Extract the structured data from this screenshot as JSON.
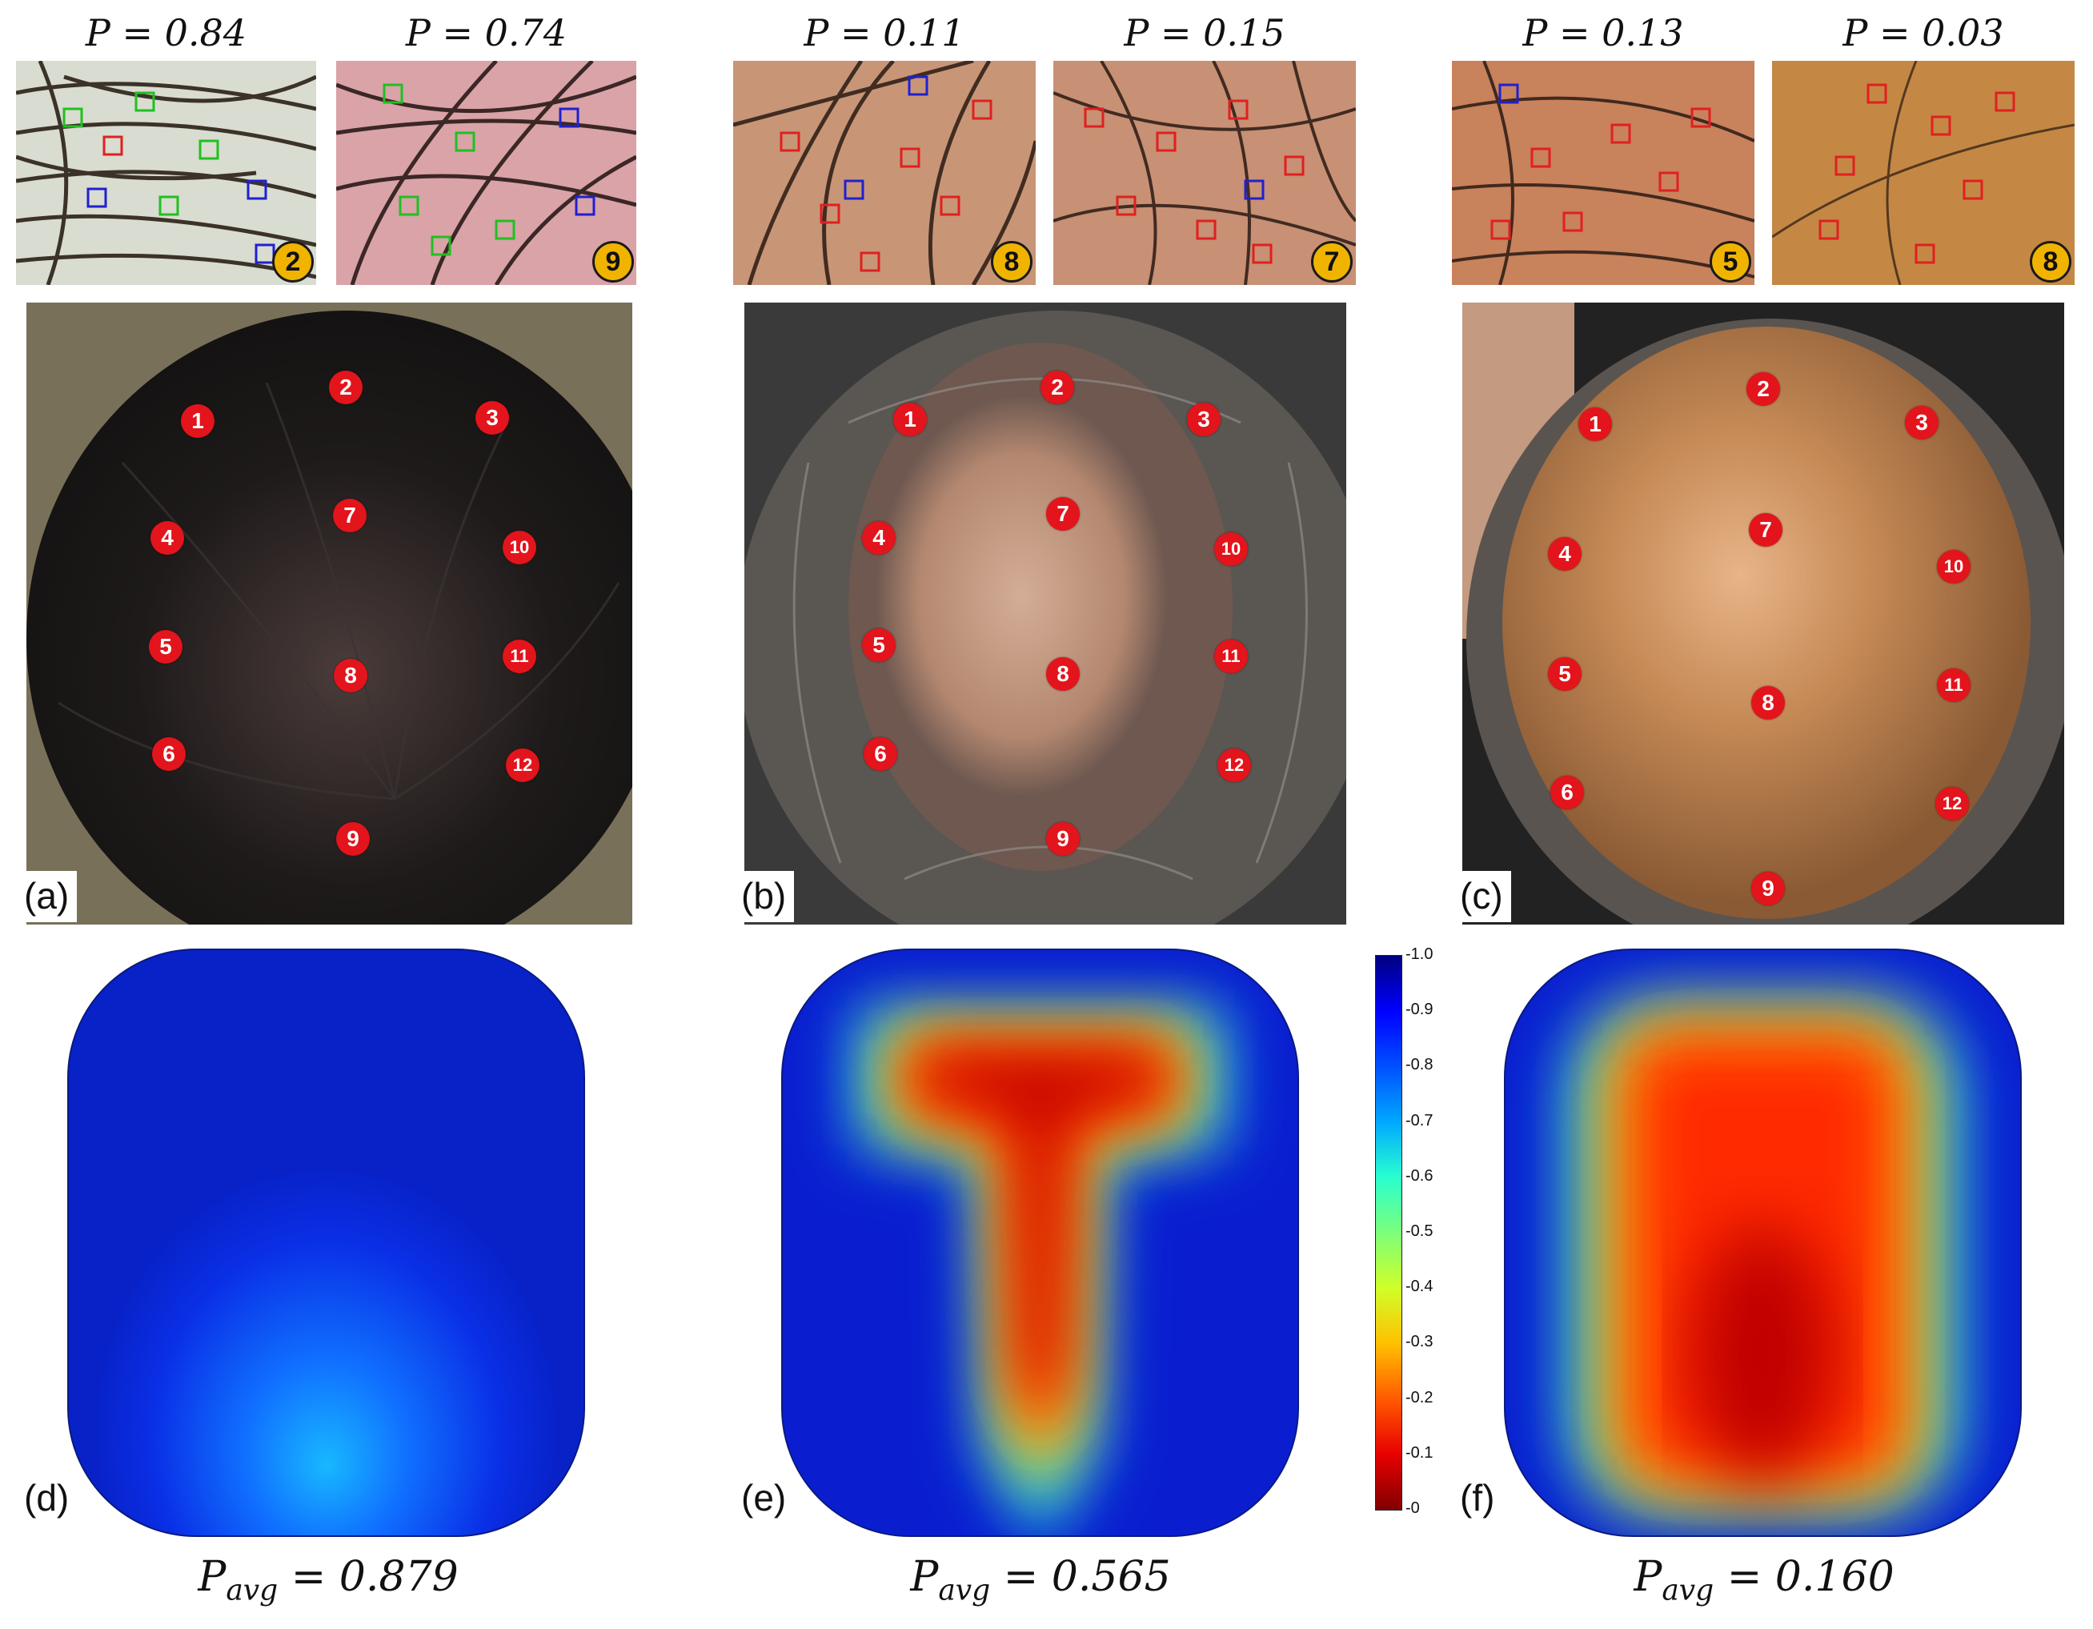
{
  "panels": [
    {
      "label": "(a)",
      "micro_images": [
        {
          "p_label": "P = 0.84",
          "badge": "2",
          "box_color": "green"
        },
        {
          "p_label": "P = 0.74",
          "badge": "9",
          "box_color": "green"
        }
      ],
      "scalp_photo": {
        "description_icon": "scalp-photo-dense-hair",
        "point_labels": [
          "1",
          "2",
          "3",
          "4",
          "5",
          "6",
          "7",
          "8",
          "9",
          "10",
          "11",
          "12"
        ]
      },
      "heatmap": {
        "label": "(d)",
        "avg_prefix": "P",
        "avg_subscript": "avg",
        "avg_value": "= 0.879"
      }
    },
    {
      "label": "(b)",
      "micro_images": [
        {
          "p_label": "P = 0.11",
          "badge": "8",
          "box_color": "red"
        },
        {
          "p_label": "P = 0.15",
          "badge": "7",
          "box_color": "red"
        }
      ],
      "scalp_photo": {
        "description_icon": "scalp-photo-partial-bald",
        "point_labels": [
          "1",
          "2",
          "3",
          "4",
          "5",
          "6",
          "7",
          "8",
          "9",
          "10",
          "11",
          "12"
        ]
      },
      "heatmap": {
        "label": "(e)",
        "avg_prefix": "P",
        "avg_subscript": "avg",
        "avg_value": "= 0.565"
      }
    },
    {
      "label": "(c)",
      "micro_images": [
        {
          "p_label": "P = 0.13",
          "badge": "5",
          "box_color": "red"
        },
        {
          "p_label": "P = 0.03",
          "badge": "8",
          "box_color": "red"
        }
      ],
      "scalp_photo": {
        "description_icon": "scalp-photo-bald",
        "point_labels": [
          "1",
          "2",
          "3",
          "4",
          "5",
          "6",
          "7",
          "8",
          "9",
          "10",
          "11",
          "12"
        ]
      },
      "heatmap": {
        "label": "(f)",
        "avg_prefix": "P",
        "avg_subscript": "avg",
        "avg_value": "= 0.160"
      }
    }
  ],
  "colorbar": {
    "ticks": [
      "-1.0",
      "-0.9",
      "-0.8",
      "-0.7",
      "-0.6",
      "-0.5",
      "-0.4",
      "-0.3",
      "-0.2",
      "-0.1",
      "-0"
    ],
    "colormap": "jet",
    "range": [
      0,
      1.0
    ]
  },
  "colors": {
    "marker_red": "#e3141b",
    "badge_yellow": "#f0b400",
    "heat_low": "#800000",
    "heat_high": "#00007f"
  }
}
